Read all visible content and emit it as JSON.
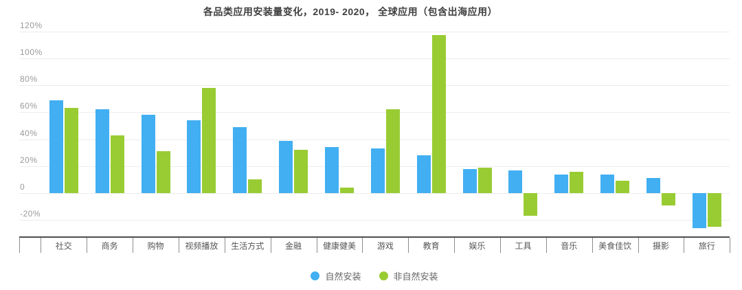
{
  "chart_data": {
    "type": "bar",
    "title": "各品类应用安装量变化，2019- 2020， 全球应用（包含出海应用）",
    "categories": [
      "社交",
      "商务",
      "购物",
      "视频播放",
      "生活方式",
      "金融",
      "健康健美",
      "游戏",
      "教育",
      "娱乐",
      "工具",
      "音乐",
      "美食佳饮",
      "摄影",
      "旅行"
    ],
    "series": [
      {
        "name": "自然安装",
        "color": "#41AFF2",
        "values": [
          69,
          62,
          58,
          54,
          49,
          39,
          34,
          33,
          28,
          18,
          17,
          14,
          14,
          11,
          -26
        ]
      },
      {
        "name": "非自然安装",
        "color": "#99CC33",
        "values": [
          63,
          43,
          31,
          78,
          10,
          32,
          4,
          62,
          117,
          19,
          -17,
          16,
          9,
          -9,
          -25
        ]
      }
    ],
    "unit": "%",
    "y_axis": {
      "range": [
        -32,
        123
      ],
      "ticks": [
        {
          "value": 120,
          "label": "120%"
        },
        {
          "value": 100,
          "label": "100%"
        },
        {
          "value": 80,
          "label": "80%"
        },
        {
          "value": 60,
          "label": "60%"
        },
        {
          "value": 40,
          "label": "40%"
        },
        {
          "value": 20,
          "label": "20%"
        },
        {
          "value": 0,
          "label": "0"
        },
        {
          "value": -20,
          "label": "-20%"
        }
      ]
    },
    "grid": true,
    "legend_position": "bottom"
  },
  "colors": {
    "background": "#ffffff",
    "title": "#3f3f3f",
    "gridline": "#ececec",
    "y_label": "#999999",
    "x_label": "#555555",
    "axis_line": "#4d4d4d",
    "axis_tick": "#8c8c8c",
    "legend_text": "#666666",
    "series_blue": "#41AFF2",
    "series_green": "#99CC33"
  }
}
